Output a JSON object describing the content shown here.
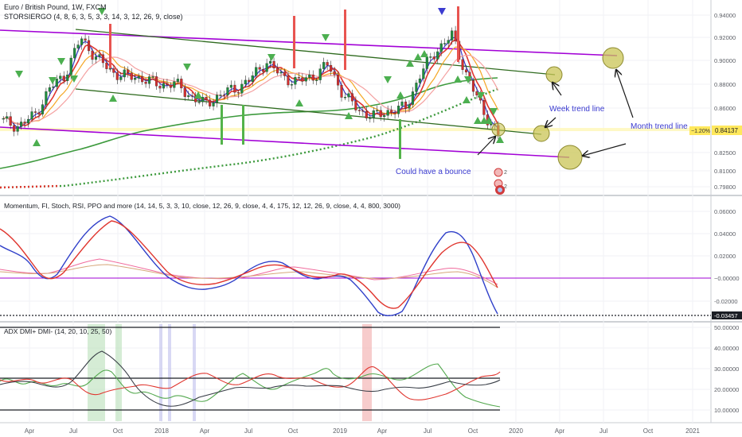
{
  "chart_data": [
    {
      "type": "candlestick",
      "title": "Euro / British Pound, 1W, FXCM",
      "indicator_label": "STORSIERGO (4, 8, 6, 3, 5, 3, 3, 14, 3, 12, 26, 9, close)",
      "y_axis": {
        "ticks": [
          "0.94000",
          "0.92000",
          "0.90000",
          "0.88000",
          "0.86000",
          "0.84000",
          "0.82500",
          "0.81000",
          "0.79800"
        ],
        "range": [
          0.794,
          0.948
        ]
      },
      "x_axis": {
        "ticks": [
          "Apr",
          "Jul",
          "Oct",
          "2018",
          "Apr",
          "Jul",
          "Oct",
          "2019",
          "Apr",
          "Jul",
          "Oct",
          "2020",
          "Apr",
          "Jul",
          "Oct",
          "2021"
        ]
      },
      "price_tag": "0.84137",
      "change_tag": "−1.20%",
      "close_series": [
        {
          "date": "2017-03",
          "close": 0.852
        },
        {
          "date": "2017-04",
          "close": 0.848
        },
        {
          "date": "2017-05",
          "close": 0.857
        },
        {
          "date": "2017-06",
          "close": 0.879
        },
        {
          "date": "2017-07",
          "close": 0.891
        },
        {
          "date": "2017-08",
          "close": 0.921
        },
        {
          "date": "2017-09",
          "close": 0.905
        },
        {
          "date": "2017-10",
          "close": 0.893
        },
        {
          "date": "2017-11",
          "close": 0.889
        },
        {
          "date": "2017-12",
          "close": 0.888
        },
        {
          "date": "2018-01",
          "close": 0.882
        },
        {
          "date": "2018-02",
          "close": 0.884
        },
        {
          "date": "2018-03",
          "close": 0.874
        },
        {
          "date": "2018-04",
          "close": 0.866
        },
        {
          "date": "2018-05",
          "close": 0.874
        },
        {
          "date": "2018-06",
          "close": 0.879
        },
        {
          "date": "2018-07",
          "close": 0.887
        },
        {
          "date": "2018-08",
          "close": 0.902
        },
        {
          "date": "2018-09",
          "close": 0.889
        },
        {
          "date": "2018-10",
          "close": 0.885
        },
        {
          "date": "2018-11",
          "close": 0.889
        },
        {
          "date": "2018-12",
          "close": 0.899
        },
        {
          "date": "2019-01",
          "close": 0.874
        },
        {
          "date": "2019-02",
          "close": 0.861
        },
        {
          "date": "2019-03",
          "close": 0.856
        },
        {
          "date": "2019-04",
          "close": 0.861
        },
        {
          "date": "2019-05",
          "close": 0.863
        },
        {
          "date": "2019-06",
          "close": 0.892
        },
        {
          "date": "2019-07",
          "close": 0.911
        },
        {
          "date": "2019-08",
          "close": 0.923
        },
        {
          "date": "2019-09",
          "close": 0.889
        },
        {
          "date": "2019-10",
          "close": 0.861
        },
        {
          "date": "2019-11",
          "close": 0.841
        }
      ],
      "annotations": [
        "Week trend line",
        "Month trend line",
        "Could have a bounce"
      ]
    },
    {
      "type": "line",
      "title": "Momentum, FI, Stoch, RSI, PPO and more (14, 14, 5, 3, 3, 10, close, 12, 26, 9, close, 4, 4, 175, 12, 12, 26, 9, close, 4, 4, 800, 3000)",
      "y_axis": {
        "ticks": [
          "0.06000",
          "0.04000",
          "0.02000",
          "0.00000",
          "-0.02000"
        ],
        "range": [
          -0.036,
          0.066
        ]
      },
      "value_tags": [
        "−0.00000",
        "-0.03457"
      ]
    },
    {
      "type": "line",
      "title": "ADX DMI+ DMI- (14, 20, 10, 25, 50)",
      "y_axis": {
        "ticks": [
          "50.00000",
          "40.00000",
          "30.00000",
          "20.00000",
          "10.00000"
        ],
        "range": [
          6,
          52
        ]
      }
    }
  ]
}
